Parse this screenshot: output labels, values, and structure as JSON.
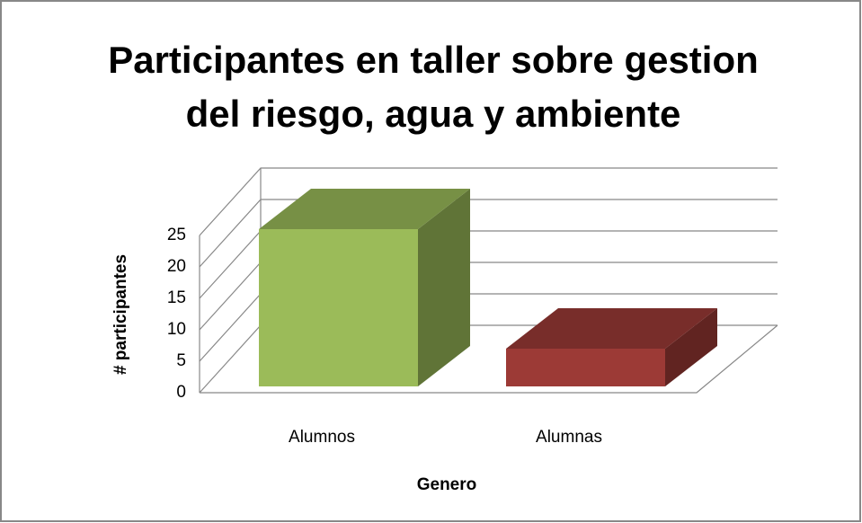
{
  "chart_data": {
    "type": "bar3d",
    "title": [
      "Participantes en taller sobre gestion",
      "del riesgo, agua y ambiente"
    ],
    "categories": [
      "Alumnos",
      "Alumnas"
    ],
    "values": [
      25,
      6
    ],
    "colors": [
      "#9bbb59",
      "#9c3a36"
    ],
    "ylim": [
      0,
      25
    ],
    "yticks": [
      0,
      5,
      10,
      15,
      20,
      25
    ],
    "grid": true,
    "xlabel": "Genero",
    "ylabel": "# participantes"
  }
}
